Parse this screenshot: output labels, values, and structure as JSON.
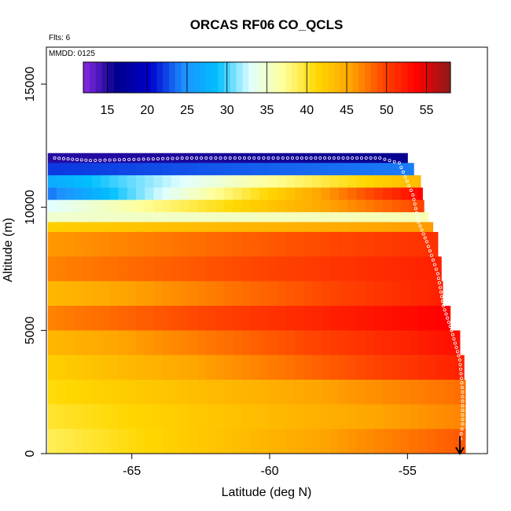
{
  "chart_data": {
    "type": "heatmap",
    "title": "ORCAS RF06 CO_QCLS",
    "annotations": {
      "flights": "Flts: 6",
      "date": "MMDD: 0125"
    },
    "xlabel": "Latitude (deg N)",
    "ylabel": "Altitude (m)",
    "xlim": [
      -68.1,
      -52.1
    ],
    "ylim": [
      0,
      16500
    ],
    "x_ticks": [
      -65,
      -60,
      -55
    ],
    "x_tick_labels": [
      "-65",
      "-60",
      "-55"
    ],
    "y_ticks": [
      0,
      5000,
      10000,
      15000
    ],
    "y_tick_labels": [
      "0",
      "5000",
      "10000",
      "15000"
    ],
    "colorbar": {
      "range": [
        12,
        58
      ],
      "ticks": [
        15,
        20,
        25,
        30,
        35,
        40,
        45,
        50,
        55
      ],
      "tick_labels": [
        "15",
        "20",
        "25",
        "30",
        "35",
        "40",
        "45",
        "50",
        "55"
      ],
      "colors": [
        "#8a2be2",
        "#00008b",
        "#0000cd",
        "#1e90ff",
        "#00bfff",
        "#e0ffff",
        "#ffff99",
        "#ffd700",
        "#ffa500",
        "#ff4500",
        "#ff0000",
        "#8b1a1a"
      ]
    },
    "altitude_bands_m": [
      {
        "z": [
          11800,
          12200
        ],
        "co_south": 15,
        "co_north": 16
      },
      {
        "z": [
          11300,
          11800
        ],
        "co_south": 22,
        "co_north": 24
      },
      {
        "z": [
          10800,
          11300
        ],
        "co_south": 27,
        "co_north": 44
      },
      {
        "z": [
          10300,
          10800
        ],
        "co_south": 24,
        "co_north": 54
      },
      {
        "z": [
          9800,
          10300
        ],
        "co_south": 33,
        "co_north": 50
      },
      {
        "z": [
          9400,
          9800
        ],
        "co_south": 35,
        "co_north": 36
      },
      {
        "z": [
          9000,
          9400
        ],
        "co_south": 42,
        "co_north": 46
      },
      {
        "z": [
          8000,
          9000
        ],
        "co_south": 46,
        "co_north": 51
      },
      {
        "z": [
          7000,
          8000
        ],
        "co_south": 47,
        "co_north": 52
      },
      {
        "z": [
          6000,
          7000
        ],
        "co_south": 44,
        "co_north": 52
      },
      {
        "z": [
          5000,
          6000
        ],
        "co_south": 47,
        "co_north": 54
      },
      {
        "z": [
          4000,
          5000
        ],
        "co_south": 44,
        "co_north": 53
      },
      {
        "z": [
          3000,
          4000
        ],
        "co_south": 42,
        "co_north": 52
      },
      {
        "z": [
          2000,
          3000
        ],
        "co_south": 41,
        "co_north": 48
      },
      {
        "z": [
          1000,
          2000
        ],
        "co_south": 40,
        "co_north": 47
      },
      {
        "z": [
          0,
          1000
        ],
        "co_south": 39,
        "co_north": 49
      }
    ],
    "coverage_north_edge": [
      {
        "alt": 12200,
        "lat": -55.1
      },
      {
        "alt": 11000,
        "lat": -54.5
      },
      {
        "alt": 10000,
        "lat": -54.4
      },
      {
        "alt": 9000,
        "lat": -54.0
      },
      {
        "alt": 8000,
        "lat": -53.8
      },
      {
        "alt": 6000,
        "lat": -53.7
      },
      {
        "alt": 5000,
        "lat": -53.2
      },
      {
        "alt": 4000,
        "lat": -53.0
      },
      {
        "alt": 3000,
        "lat": -52.9
      },
      {
        "alt": 0,
        "lat": -52.9
      }
    ],
    "flight_track": [
      {
        "lat": -67.8,
        "alt": 12000
      },
      {
        "lat": -66.5,
        "alt": 11900
      },
      {
        "lat": -63.0,
        "alt": 12000
      },
      {
        "lat": -59.0,
        "alt": 12000
      },
      {
        "lat": -56.0,
        "alt": 12000
      },
      {
        "lat": -55.3,
        "alt": 11800
      },
      {
        "lat": -54.8,
        "alt": 10500
      },
      {
        "lat": -54.6,
        "alt": 9400
      },
      {
        "lat": -54.3,
        "alt": 8600
      },
      {
        "lat": -53.9,
        "alt": 7300
      },
      {
        "lat": -53.7,
        "alt": 6000
      },
      {
        "lat": -53.4,
        "alt": 5000
      },
      {
        "lat": -53.1,
        "alt": 3800
      },
      {
        "lat": -53.0,
        "alt": 2500
      },
      {
        "lat": -53.0,
        "alt": 1200
      },
      {
        "lat": -53.1,
        "alt": 400
      }
    ],
    "arrow": {
      "lat": -53.1,
      "alt_from": 700,
      "alt_to": 0
    }
  }
}
